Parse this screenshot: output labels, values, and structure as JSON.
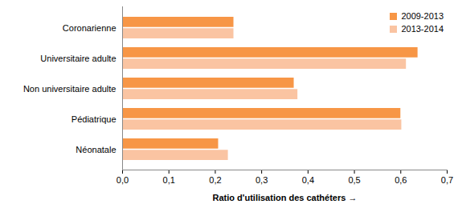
{
  "chart_data": {
    "type": "bar",
    "orientation": "horizontal",
    "xlabel": "Ratio d'utilisation des cathéters",
    "categories": [
      "Coronarienne",
      "Universitaire adulte",
      "Non universitaire adulte",
      "Pédiatrique",
      "Néonatale"
    ],
    "series": [
      {
        "name": "2009-2013",
        "color": "#F79646",
        "values": [
          0.24,
          0.637,
          0.37,
          0.6,
          0.207
        ]
      },
      {
        "name": "2013-2014",
        "color": "#FAC4A2",
        "values": [
          0.24,
          0.612,
          0.378,
          0.602,
          0.228
        ]
      }
    ],
    "xlim": [
      0,
      0.7
    ],
    "xticks": [
      {
        "value": 0,
        "label": "0,0"
      },
      {
        "value": 0.1,
        "label": "0,1"
      },
      {
        "value": 0.2,
        "label": "0,2"
      },
      {
        "value": 0.3,
        "label": "0,3"
      },
      {
        "value": 0.4,
        "label": "0,4"
      },
      {
        "value": 0.5,
        "label": "0,5"
      },
      {
        "value": 0.6,
        "label": "0,6"
      },
      {
        "value": 0.7,
        "label": "0,7"
      }
    ],
    "grid": false,
    "legend": "top-right"
  }
}
